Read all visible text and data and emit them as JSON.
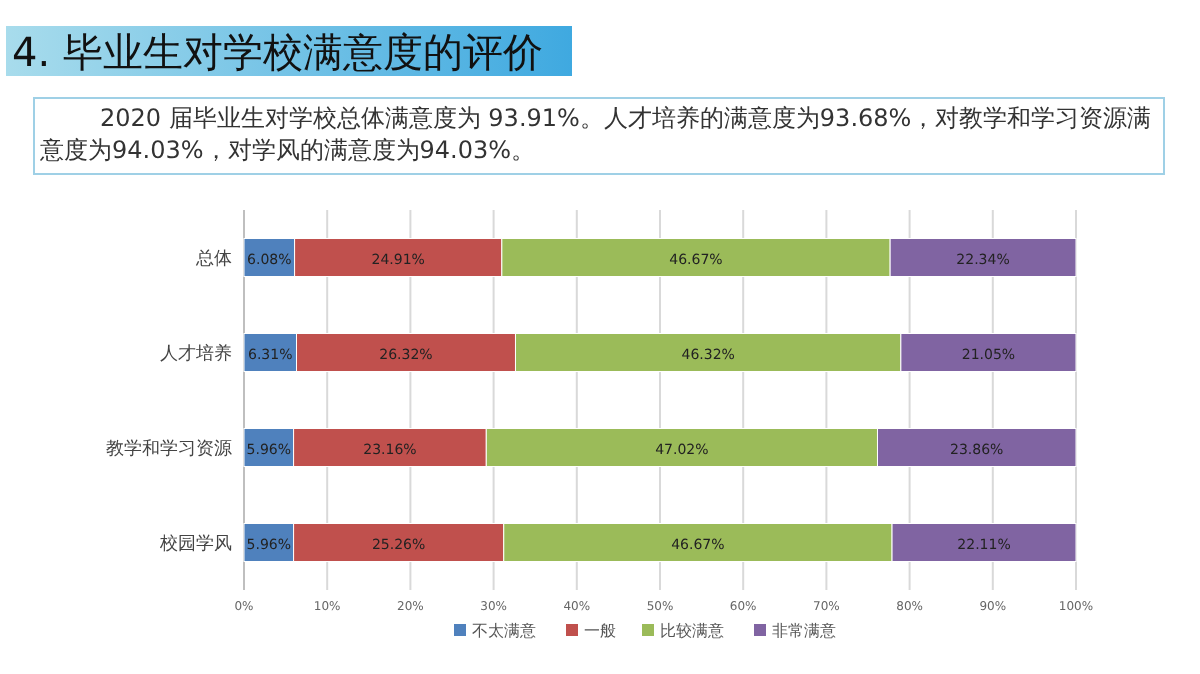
{
  "chart_data": {
    "type": "bar",
    "orientation": "horizontal",
    "stacked": true,
    "title": "4. 毕业生对学校满意度的评价",
    "subtitle": "2020 届毕业生对学校总体满意度为 93.91%。人才培养的满意度为93.68%，对教学和学习资源满意度为94.03%，对学风的满意度为94.03%。",
    "categories": [
      "总体",
      "人才培养",
      "教学和学习资源",
      "校园学风"
    ],
    "series": [
      {
        "name": "不太满意",
        "color": "#4f81bd",
        "values": [
          6.08,
          6.31,
          5.96,
          5.96
        ],
        "value_labels": [
          "6.08%",
          "6.31%",
          "5.96%",
          "5.96%"
        ]
      },
      {
        "name": "一般",
        "color": "#c0504d",
        "values": [
          24.91,
          26.32,
          23.16,
          25.26
        ],
        "value_labels": [
          "24.91%",
          "26.32%",
          "23.16%",
          "25.26%"
        ]
      },
      {
        "name": "比较满意",
        "color": "#9bbb59",
        "values": [
          46.67,
          46.32,
          47.02,
          46.67
        ],
        "value_labels": [
          "46.67%",
          "46.32%",
          "47.02%",
          "46.67%"
        ]
      },
      {
        "name": "非常满意",
        "color": "#8064a2",
        "values": [
          22.34,
          21.05,
          23.86,
          22.11
        ],
        "value_labels": [
          "22.34%",
          "21.05%",
          "23.86%",
          "22.11%"
        ]
      }
    ],
    "xlim": [
      0,
      100
    ],
    "xticks": [
      {
        "value": 0,
        "label": "0%"
      },
      {
        "value": 10,
        "label": "10%"
      },
      {
        "value": 20,
        "label": "20%"
      },
      {
        "value": 30,
        "label": "30%"
      },
      {
        "value": 40,
        "label": "40%"
      },
      {
        "value": 50,
        "label": "50%"
      },
      {
        "value": 60,
        "label": "60%"
      },
      {
        "value": 70,
        "label": "70%"
      },
      {
        "value": 80,
        "label": "80%"
      },
      {
        "value": 90,
        "label": "90%"
      },
      {
        "value": 100,
        "label": "100%"
      }
    ],
    "grid": "x",
    "legend": "bottom"
  }
}
